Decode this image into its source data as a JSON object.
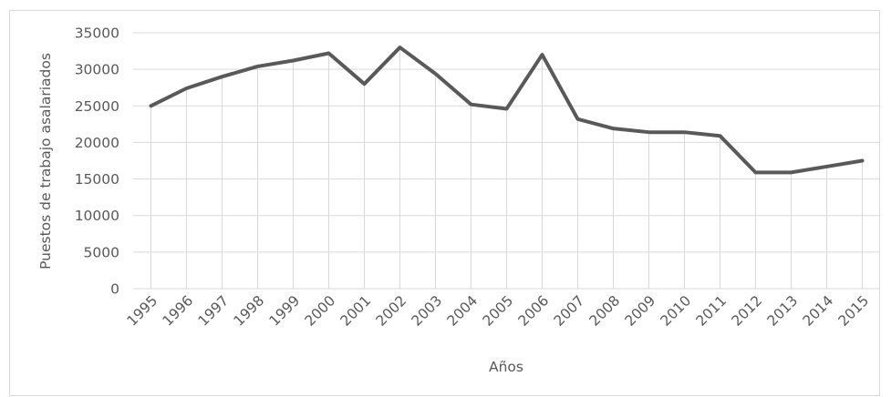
{
  "chart_data": {
    "type": "line",
    "x": [
      "1995",
      "1996",
      "1997",
      "1998",
      "1999",
      "2000",
      "2001",
      "2002",
      "2003",
      "2004",
      "2005",
      "2006",
      "2007",
      "2008",
      "2009",
      "2010",
      "2011",
      "2012",
      "2013",
      "2014",
      "2015"
    ],
    "series": [
      {
        "values": [
          25000,
          27400,
          29000,
          30400,
          31200,
          32200,
          28000,
          33000,
          29400,
          25200,
          24600,
          32000,
          23200,
          21900,
          21400,
          21400,
          20900,
          15900,
          15900,
          16700,
          17500
        ],
        "color": "#595959"
      }
    ],
    "xlabel": "Años",
    "ylabel": "Puestos de trabajo asalariados",
    "ylim": [
      0,
      35000
    ],
    "yticks": [
      "0",
      "5000",
      "10000",
      "15000",
      "20000",
      "25000",
      "30000",
      "35000"
    ],
    "grid": {
      "horizontal": true,
      "vertical": true
    },
    "legend": "none"
  },
  "colors": {
    "line": "#595959",
    "grid": "#d9d9d9",
    "text": "#595959"
  }
}
